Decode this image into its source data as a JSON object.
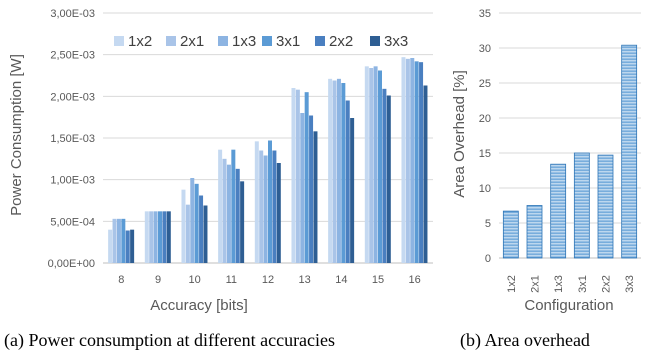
{
  "captions": {
    "a": "(a) Power consumption at different accuracies",
    "b": "(b) Area overhead"
  },
  "colors": {
    "grid": "#d9d9d9",
    "axis": "#bfbfbf",
    "bar_fill_b": "#bdd7ee",
    "bar_stripe_b": "#5b9bd5",
    "bar_edge_b": "#2e75b6"
  },
  "chart_data": [
    {
      "type": "bar",
      "title": "",
      "xlabel": "Accuracy [bits]",
      "ylabel": "Power Consumption [W]",
      "ylim": [
        0,
        0.003
      ],
      "y_ticks": [
        0,
        0.0005,
        0.001,
        0.0015,
        0.002,
        0.0025,
        0.003
      ],
      "y_tick_labels": [
        "0,00E+00",
        "5,00E-04",
        "1,00E-03",
        "1,50E-03",
        "2,00E-03",
        "2,50E-03",
        "3,00E-03"
      ],
      "grid": true,
      "legend_position": "top",
      "categories": [
        "8",
        "9",
        "10",
        "11",
        "12",
        "13",
        "14",
        "15",
        "16"
      ],
      "series": [
        {
          "name": "1x2",
          "color": "#c5d9f1",
          "values": [
            0.0004,
            0.00062,
            0.00088,
            0.00136,
            0.00146,
            0.0021,
            0.00221,
            0.00236,
            0.00247
          ]
        },
        {
          "name": "2x1",
          "color": "#a9c4e8",
          "values": [
            0.00053,
            0.00062,
            0.0007,
            0.00125,
            0.00135,
            0.00208,
            0.00219,
            0.00234,
            0.00245
          ]
        },
        {
          "name": "1x3",
          "color": "#8db4e2",
          "values": [
            0.00053,
            0.00062,
            0.00102,
            0.00118,
            0.00129,
            0.0018,
            0.00221,
            0.00236,
            0.00246
          ]
        },
        {
          "name": "3x1",
          "color": "#5b9bd5",
          "values": [
            0.00053,
            0.00062,
            0.00095,
            0.00136,
            0.00147,
            0.00205,
            0.00216,
            0.00231,
            0.00242
          ]
        },
        {
          "name": "2x2",
          "color": "#4a7fc0",
          "values": [
            0.00039,
            0.00062,
            0.00081,
            0.00113,
            0.00135,
            0.00177,
            0.00195,
            0.00209,
            0.00241
          ]
        },
        {
          "name": "3x3",
          "color": "#2e5e93",
          "values": [
            0.0004,
            0.00062,
            0.00069,
            0.00098,
            0.0012,
            0.00158,
            0.00174,
            0.00201,
            0.00213
          ]
        }
      ]
    },
    {
      "type": "bar",
      "title": "",
      "xlabel": "Configuration",
      "ylabel": "Area Overhead [%]",
      "ylim": [
        0,
        35
      ],
      "y_ticks": [
        0,
        5,
        10,
        15,
        20,
        25,
        30,
        35
      ],
      "y_tick_labels": [
        "0",
        "5",
        "10",
        "15",
        "20",
        "25",
        "30",
        "35"
      ],
      "grid": true,
      "categories": [
        "1x2",
        "2x1",
        "1x3",
        "3x1",
        "2x2",
        "3x3"
      ],
      "values": [
        6.7,
        7.5,
        13.4,
        15.0,
        14.7,
        30.4
      ]
    }
  ]
}
